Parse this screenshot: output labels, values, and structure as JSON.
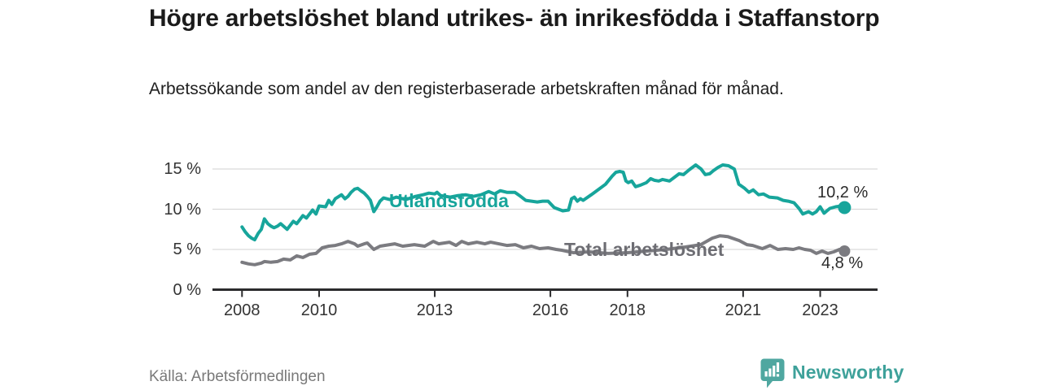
{
  "header": {
    "title": "Högre arbetslöshet bland utrikes- än inrikesfödda i Staffanstorp",
    "subtitle": "Arbetssökande som andel av den registerbaserade arbetskraften månad för månad."
  },
  "chart_data": {
    "type": "line",
    "title": "Högre arbetslöshet bland utrikes- än inrikesfödda i Staffanstorp",
    "xlabel": "",
    "ylabel": "",
    "grid": "horizontal",
    "legend_position": "inline-labels",
    "x_axis": {
      "unit": "year",
      "range": [
        2006.9,
        2024.5
      ],
      "ticks": [
        {
          "value": 2008,
          "label": "2008"
        },
        {
          "value": 2010,
          "label": "2010"
        },
        {
          "value": 2013,
          "label": "2013"
        },
        {
          "value": 2016,
          "label": "2016"
        },
        {
          "value": 2018,
          "label": "2018"
        },
        {
          "value": 2021,
          "label": "2021"
        },
        {
          "value": 2023,
          "label": "2023"
        }
      ]
    },
    "y_axis": {
      "unit": "%",
      "range": [
        0,
        16
      ],
      "ticks": [
        {
          "value": 0,
          "label": "0 %"
        },
        {
          "value": 5,
          "label": "5 %"
        },
        {
          "value": 10,
          "label": "10 %"
        },
        {
          "value": 15,
          "label": "15 %"
        }
      ]
    },
    "series": [
      {
        "name": "Utlandsfödda",
        "color": "#17a59b",
        "end_value": 10.2,
        "end_label": "10,2 %",
        "points": [
          [
            2008.0,
            7.8
          ],
          [
            2008.08,
            7.2
          ],
          [
            2008.17,
            6.7
          ],
          [
            2008.25,
            6.4
          ],
          [
            2008.33,
            6.2
          ],
          [
            2008.42,
            7.0
          ],
          [
            2008.5,
            7.5
          ],
          [
            2008.58,
            8.8
          ],
          [
            2008.67,
            8.2
          ],
          [
            2008.75,
            7.9
          ],
          [
            2008.83,
            7.7
          ],
          [
            2008.92,
            7.9
          ],
          [
            2009.0,
            8.2
          ],
          [
            2009.17,
            7.5
          ],
          [
            2009.33,
            8.5
          ],
          [
            2009.42,
            8.2
          ],
          [
            2009.58,
            9.2
          ],
          [
            2009.67,
            8.9
          ],
          [
            2009.83,
            9.9
          ],
          [
            2009.92,
            9.4
          ],
          [
            2010.0,
            10.4
          ],
          [
            2010.17,
            10.3
          ],
          [
            2010.25,
            11.1
          ],
          [
            2010.33,
            10.6
          ],
          [
            2010.42,
            11.3
          ],
          [
            2010.58,
            11.8
          ],
          [
            2010.67,
            11.3
          ],
          [
            2010.75,
            11.6
          ],
          [
            2010.83,
            12.1
          ],
          [
            2010.92,
            12.5
          ],
          [
            2011.0,
            12.6
          ],
          [
            2011.08,
            12.3
          ],
          [
            2011.17,
            12.0
          ],
          [
            2011.25,
            11.6
          ],
          [
            2011.33,
            11.1
          ],
          [
            2011.42,
            9.7
          ],
          [
            2011.5,
            10.3
          ],
          [
            2011.58,
            11.0
          ],
          [
            2011.67,
            11.4
          ],
          [
            2011.83,
            11.2
          ],
          [
            2012.0,
            11.5
          ],
          [
            2012.25,
            11.2
          ],
          [
            2012.5,
            11.6
          ],
          [
            2012.7,
            11.8
          ],
          [
            2012.85,
            12.0
          ],
          [
            2013.0,
            11.9
          ],
          [
            2013.06,
            12.1
          ],
          [
            2013.15,
            11.7
          ],
          [
            2013.4,
            11.5
          ],
          [
            2013.6,
            11.7
          ],
          [
            2013.8,
            11.8
          ],
          [
            2014.0,
            11.6
          ],
          [
            2014.2,
            11.8
          ],
          [
            2014.4,
            12.2
          ],
          [
            2014.55,
            11.9
          ],
          [
            2014.7,
            12.3
          ],
          [
            2014.87,
            12.1
          ],
          [
            2015.08,
            12.1
          ],
          [
            2015.2,
            11.7
          ],
          [
            2015.36,
            11.1
          ],
          [
            2015.51,
            11.0
          ],
          [
            2015.66,
            10.9
          ],
          [
            2015.8,
            11.0
          ],
          [
            2015.94,
            11.0
          ],
          [
            2016.1,
            10.2
          ],
          [
            2016.32,
            9.8
          ],
          [
            2016.47,
            9.9
          ],
          [
            2016.55,
            11.3
          ],
          [
            2016.62,
            11.5
          ],
          [
            2016.7,
            11.0
          ],
          [
            2016.78,
            11.3
          ],
          [
            2016.85,
            11.1
          ],
          [
            2017.06,
            11.8
          ],
          [
            2017.26,
            12.5
          ],
          [
            2017.43,
            13.1
          ],
          [
            2017.6,
            14.1
          ],
          [
            2017.7,
            14.6
          ],
          [
            2017.8,
            14.7
          ],
          [
            2017.89,
            14.6
          ],
          [
            2017.96,
            13.5
          ],
          [
            2018.02,
            13.3
          ],
          [
            2018.11,
            13.5
          ],
          [
            2018.21,
            12.8
          ],
          [
            2018.34,
            13.0
          ],
          [
            2018.49,
            13.3
          ],
          [
            2018.6,
            13.8
          ],
          [
            2018.7,
            13.6
          ],
          [
            2018.81,
            13.5
          ],
          [
            2018.91,
            13.7
          ],
          [
            2019.09,
            13.5
          ],
          [
            2019.34,
            14.4
          ],
          [
            2019.45,
            14.3
          ],
          [
            2019.6,
            14.9
          ],
          [
            2019.77,
            15.5
          ],
          [
            2019.91,
            15.0
          ],
          [
            2020.02,
            14.3
          ],
          [
            2020.13,
            14.4
          ],
          [
            2020.23,
            14.8
          ],
          [
            2020.35,
            15.2
          ],
          [
            2020.47,
            15.5
          ],
          [
            2020.62,
            15.4
          ],
          [
            2020.77,
            15.0
          ],
          [
            2020.89,
            13.1
          ],
          [
            2021.04,
            12.6
          ],
          [
            2021.15,
            12.1
          ],
          [
            2021.26,
            12.4
          ],
          [
            2021.4,
            11.8
          ],
          [
            2021.53,
            11.9
          ],
          [
            2021.68,
            11.5
          ],
          [
            2021.89,
            11.4
          ],
          [
            2022.04,
            11.1
          ],
          [
            2022.17,
            11.0
          ],
          [
            2022.32,
            10.8
          ],
          [
            2022.45,
            10.1
          ],
          [
            2022.55,
            9.4
          ],
          [
            2022.7,
            9.7
          ],
          [
            2022.8,
            9.4
          ],
          [
            2022.9,
            9.7
          ],
          [
            2023.0,
            10.3
          ],
          [
            2023.1,
            9.5
          ],
          [
            2023.25,
            10.1
          ],
          [
            2023.4,
            10.3
          ],
          [
            2023.55,
            10.4
          ],
          [
            2023.63,
            10.2
          ]
        ]
      },
      {
        "name": "Total arbetslöshet",
        "color": "#7b7b80",
        "label_color": "#6d6d73",
        "end_value": 4.8,
        "end_label": "4,8 %",
        "points": [
          [
            2008.0,
            3.4
          ],
          [
            2008.17,
            3.2
          ],
          [
            2008.33,
            3.1
          ],
          [
            2008.5,
            3.3
          ],
          [
            2008.58,
            3.5
          ],
          [
            2008.75,
            3.4
          ],
          [
            2008.92,
            3.5
          ],
          [
            2009.08,
            3.8
          ],
          [
            2009.25,
            3.7
          ],
          [
            2009.42,
            4.2
          ],
          [
            2009.58,
            4.0
          ],
          [
            2009.75,
            4.4
          ],
          [
            2009.92,
            4.5
          ],
          [
            2010.08,
            5.2
          ],
          [
            2010.25,
            5.4
          ],
          [
            2010.42,
            5.5
          ],
          [
            2010.58,
            5.7
          ],
          [
            2010.75,
            6.0
          ],
          [
            2010.92,
            5.7
          ],
          [
            2011.0,
            5.4
          ],
          [
            2011.17,
            5.7
          ],
          [
            2011.25,
            5.8
          ],
          [
            2011.42,
            5.0
          ],
          [
            2011.58,
            5.4
          ],
          [
            2011.96,
            5.7
          ],
          [
            2012.17,
            5.4
          ],
          [
            2012.47,
            5.6
          ],
          [
            2012.74,
            5.4
          ],
          [
            2012.96,
            6.0
          ],
          [
            2013.1,
            5.7
          ],
          [
            2013.38,
            5.9
          ],
          [
            2013.55,
            5.5
          ],
          [
            2013.7,
            6.0
          ],
          [
            2013.87,
            5.7
          ],
          [
            2014.09,
            5.9
          ],
          [
            2014.3,
            5.7
          ],
          [
            2014.45,
            5.9
          ],
          [
            2014.66,
            5.7
          ],
          [
            2014.87,
            5.5
          ],
          [
            2015.09,
            5.6
          ],
          [
            2015.3,
            5.2
          ],
          [
            2015.51,
            5.4
          ],
          [
            2015.72,
            5.1
          ],
          [
            2015.94,
            5.2
          ],
          [
            2016.15,
            5.0
          ],
          [
            2016.3,
            4.9
          ],
          [
            2016.6,
            4.6
          ],
          [
            2017.0,
            4.7
          ],
          [
            2017.5,
            4.5
          ],
          [
            2018.0,
            4.6
          ],
          [
            2018.5,
            4.8
          ],
          [
            2019.0,
            5.0
          ],
          [
            2019.5,
            5.3
          ],
          [
            2019.9,
            5.6
          ],
          [
            2020.2,
            6.4
          ],
          [
            2020.4,
            6.7
          ],
          [
            2020.6,
            6.6
          ],
          [
            2020.9,
            6.1
          ],
          [
            2021.1,
            5.6
          ],
          [
            2021.25,
            5.5
          ],
          [
            2021.5,
            5.1
          ],
          [
            2021.7,
            5.5
          ],
          [
            2021.9,
            5.0
          ],
          [
            2022.1,
            5.1
          ],
          [
            2022.3,
            5.0
          ],
          [
            2022.45,
            5.2
          ],
          [
            2022.6,
            5.0
          ],
          [
            2022.75,
            4.9
          ],
          [
            2022.9,
            4.5
          ],
          [
            2023.05,
            4.8
          ],
          [
            2023.2,
            4.5
          ],
          [
            2023.35,
            4.7
          ],
          [
            2023.5,
            5.0
          ],
          [
            2023.58,
            5.1
          ],
          [
            2023.63,
            4.8
          ]
        ]
      }
    ]
  },
  "footer": {
    "source": "Källa: Arbetsförmedlingen",
    "brand": "Newsworthy"
  },
  "colors": {
    "background": "#ffffff",
    "axis": "#2b2b2d",
    "grid": "#d9d9d9",
    "tick_label": "#333333",
    "accent_teal": "#17a59b",
    "line_gray": "#7b7b80",
    "logo_teal": "#4fa7a0",
    "brand_text": "#3ea19a"
  }
}
